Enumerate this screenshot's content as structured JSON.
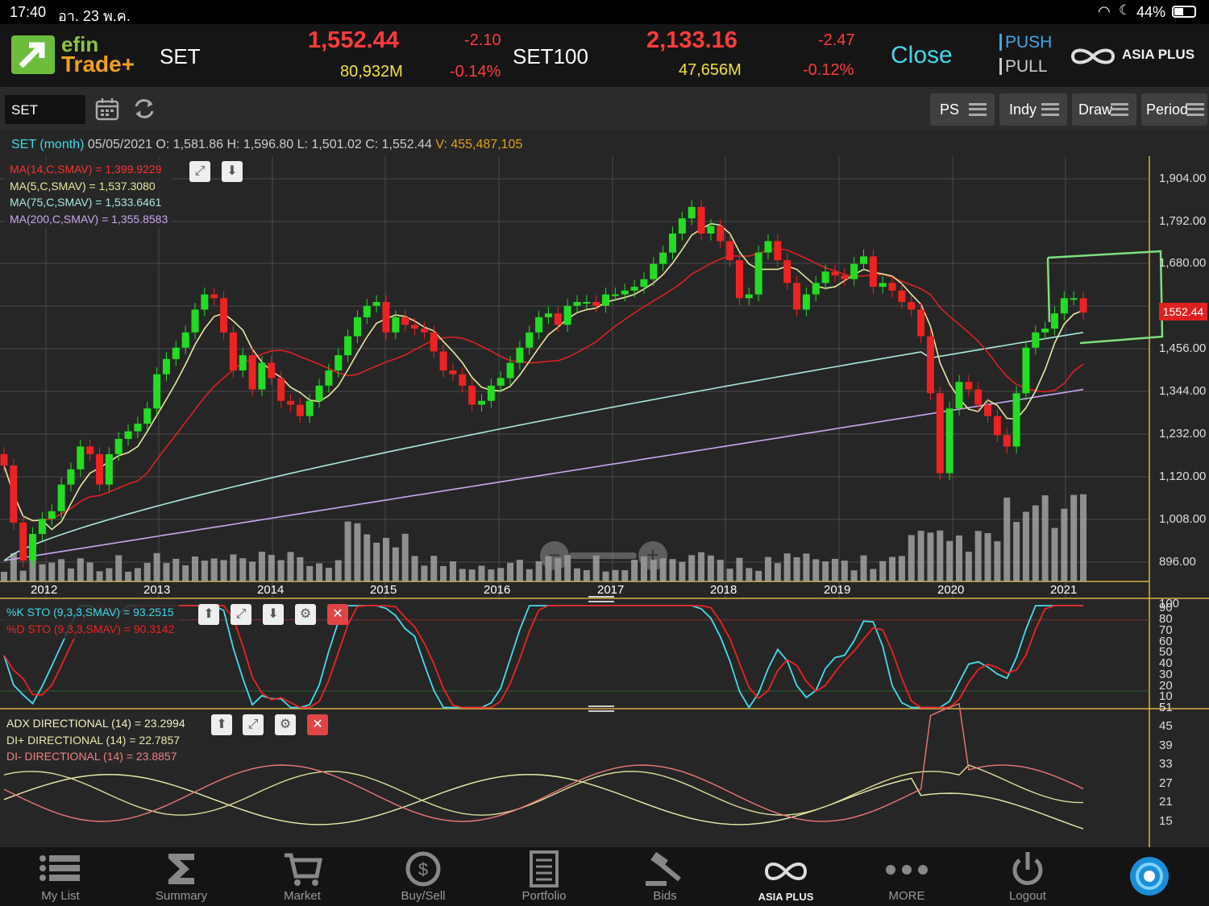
{
  "status": {
    "time": "17:40",
    "date": "อา. 23 พ.ค.",
    "battery": "44%"
  },
  "header": {
    "logo_top": "efin",
    "logo_bottom": "Trade+",
    "index1": {
      "name": "SET",
      "value": "1,552.44",
      "change": "-2.10",
      "volume": "80,932M",
      "pct": "-0.14%"
    },
    "index2": {
      "name": "SET100",
      "value": "2,133.16",
      "change": "-2.47",
      "volume": "47,656M",
      "pct": "-0.12%"
    },
    "market_status": "Close",
    "push": "PUSH",
    "pull": "PULL",
    "broker": "ASIA PLUS"
  },
  "toolbar": {
    "symbol": "SET",
    "buttons": [
      "PS",
      "Indy",
      "Draw",
      "Period"
    ]
  },
  "info": {
    "symbol": "SET (month)",
    "date": "05/05/2021",
    "o_label": "O:",
    "o": "1,581.86",
    "h_label": "H:",
    "h": "1,596.80",
    "l_label": "L:",
    "l": "1,501.02",
    "c_label": "C:",
    "c": "1,552.44",
    "v_label": "V:",
    "v": "455,487,105"
  },
  "ma_legend": [
    "MA(14,C,SMAV) = 1,399.9229",
    "MA(5,C,SMAV) = 1,537.3080",
    "MA(75,C,SMAV) = 1,533.6461",
    "MA(200,C,SMAV) = 1,355.8583"
  ],
  "sto_legend": [
    "%K STO (9,3,3,SMAV) = 93.2515",
    "%D STO (9,3,3,SMAV) = 90.3142"
  ],
  "adx_legend": [
    "ADX DIRECTIONAL (14) = 23.2994",
    "DI+ DIRECTIONAL (14) = 22.7857",
    "DI- DIRECTIONAL (14) = 23.8857"
  ],
  "price_tag": "1552.44",
  "nav": [
    "My List",
    "Summary",
    "Market",
    "Buy/Sell",
    "Portfolio",
    "Bids",
    "ASIA PLUS",
    "MORE",
    "Logout"
  ],
  "chart_data": {
    "type": "candlestick",
    "interval": "month",
    "price_axis": {
      "ticks": [
        "1,904.00",
        "1,792.00",
        "1,680.00",
        "1,456.00",
        "1,344.00",
        "1,232.00",
        "1,120.00",
        "1,008.00",
        "896.00"
      ],
      "ylim": [
        860,
        1950
      ]
    },
    "x_labels": [
      "2012",
      "2013",
      "2014",
      "2015",
      "2016",
      "2017",
      "2018",
      "2019",
      "2020",
      "2021"
    ],
    "closes": [
      1150,
      1000,
      900,
      970,
      1010,
      1030,
      1100,
      1140,
      1200,
      1180,
      1100,
      1180,
      1220,
      1240,
      1260,
      1300,
      1390,
      1430,
      1460,
      1500,
      1560,
      1600,
      1590,
      1500,
      1400,
      1440,
      1350,
      1420,
      1380,
      1320,
      1310,
      1280,
      1320,
      1360,
      1400,
      1440,
      1490,
      1540,
      1570,
      1580,
      1500,
      1540,
      1520,
      1510,
      1500,
      1450,
      1400,
      1390,
      1360,
      1310,
      1320,
      1360,
      1380,
      1420,
      1460,
      1500,
      1540,
      1550,
      1520,
      1570,
      1580,
      1580,
      1570,
      1600,
      1600,
      1610,
      1620,
      1640,
      1680,
      1710,
      1760,
      1800,
      1830,
      1760,
      1780,
      1740,
      1690,
      1590,
      1600,
      1710,
      1740,
      1690,
      1630,
      1560,
      1600,
      1630,
      1660,
      1650,
      1640,
      1680,
      1700,
      1620,
      1630,
      1610,
      1580,
      1560,
      1490,
      1340,
      1130,
      1300,
      1370,
      1350,
      1310,
      1280,
      1230,
      1200,
      1340,
      1460,
      1500,
      1510,
      1550,
      1590,
      1590,
      1552
    ],
    "volume_axis": {
      "label": "100"
    },
    "sto_axis": {
      "ticks": [
        "90",
        "80",
        "70",
        "60",
        "50",
        "40",
        "30",
        "20",
        "10",
        "5"
      ]
    },
    "adx_axis": {
      "ticks": [
        "51",
        "45",
        "39",
        "33",
        "27",
        "21",
        "15"
      ]
    },
    "series": [
      {
        "name": "MA(14,C,SMAV)",
        "color": "#e02020"
      },
      {
        "name": "MA(5,C,SMAV)",
        "color": "#e8e8a0"
      },
      {
        "name": "MA(75,C,SMAV)",
        "color": "#a8e8e0"
      },
      {
        "name": "MA(200,C,SMAV)",
        "color": "#c8a8f0"
      }
    ],
    "colors": {
      "up": "#22dd22",
      "down": "#ee2222",
      "volume": "#aaaaaa",
      "grid": "#4a4a4a",
      "k": "#44ddee",
      "d": "#ee2222",
      "adx": "#eeeeaa",
      "diplus": "#dddd99",
      "diminus": "#ee7777"
    }
  }
}
